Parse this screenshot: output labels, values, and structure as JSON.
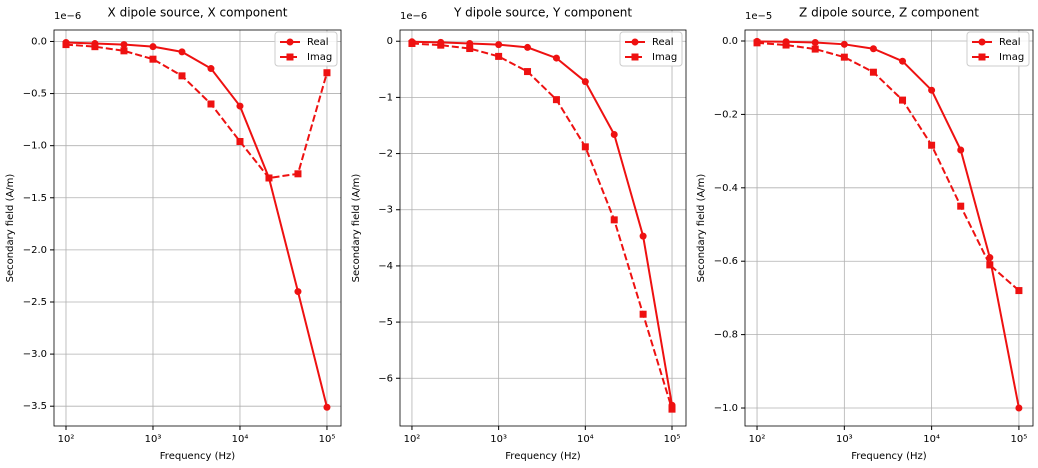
{
  "chart_data": [
    {
      "type": "line",
      "title": "X dipole source, X component",
      "offset_label": "1e−6",
      "xlabel": "Frequency (Hz)",
      "ylabel": "Secondary field (A/m)",
      "xscale": "log",
      "grid": true,
      "legend": "upper right",
      "x": [
        100,
        215,
        464,
        1000,
        2154,
        4642,
        10000,
        21544,
        46416,
        100000
      ],
      "series": [
        {
          "name": "Real",
          "color": "#ee1111",
          "marker": "circle",
          "linestyle": "solid",
          "values": [
            -0.01,
            -0.02,
            -0.03,
            -0.05,
            -0.1,
            -0.26,
            -0.62,
            -1.31,
            -2.4,
            -3.51
          ]
        },
        {
          "name": "Imag",
          "color": "#ee1111",
          "marker": "square",
          "linestyle": "dashed",
          "values": [
            -0.03,
            -0.05,
            -0.09,
            -0.17,
            -0.33,
            -0.6,
            -0.96,
            -1.31,
            -1.27,
            -0.3
          ]
        }
      ],
      "xlim": [
        72.8,
        145000
      ],
      "ylim": [
        -3.69,
        0.11
      ],
      "xticks": [
        {
          "value": 100,
          "label": "10²"
        },
        {
          "value": 1000,
          "label": "10³"
        },
        {
          "value": 10000,
          "label": "10⁴"
        },
        {
          "value": 100000,
          "label": "10⁵"
        }
      ],
      "yticks": [
        {
          "value": 0,
          "label": "0.0"
        },
        {
          "value": -0.5,
          "label": "−0.5"
        },
        {
          "value": -1,
          "label": "−1.0"
        },
        {
          "value": -1.5,
          "label": "−1.5"
        },
        {
          "value": -2,
          "label": "−2.0"
        },
        {
          "value": -2.5,
          "label": "−2.5"
        },
        {
          "value": -3,
          "label": "−3.0"
        },
        {
          "value": -3.5,
          "label": "−3.5"
        }
      ]
    },
    {
      "type": "line",
      "title": "Y dipole source, Y component",
      "offset_label": "1e−6",
      "xlabel": "Frequency (Hz)",
      "ylabel": "Secondary field (A/m)",
      "xscale": "log",
      "grid": true,
      "legend": "upper right",
      "x": [
        100,
        215,
        464,
        1000,
        2154,
        4642,
        10000,
        21544,
        46416,
        100000
      ],
      "series": [
        {
          "name": "Real",
          "color": "#ee1111",
          "marker": "circle",
          "linestyle": "solid",
          "values": [
            -0.01,
            -0.02,
            -0.04,
            -0.06,
            -0.11,
            -0.3,
            -0.72,
            -1.66,
            -3.47,
            -6.48
          ]
        },
        {
          "name": "Imag",
          "color": "#ee1111",
          "marker": "square",
          "linestyle": "dashed",
          "values": [
            -0.04,
            -0.07,
            -0.13,
            -0.27,
            -0.54,
            -1.04,
            -1.88,
            -3.18,
            -4.86,
            -6.55
          ]
        }
      ],
      "xlim": [
        72.8,
        145000
      ],
      "ylim": [
        -6.85,
        0.2
      ],
      "xticks": [
        {
          "value": 100,
          "label": "10²"
        },
        {
          "value": 1000,
          "label": "10³"
        },
        {
          "value": 10000,
          "label": "10⁴"
        },
        {
          "value": 100000,
          "label": "10⁵"
        }
      ],
      "yticks": [
        0,
        {
          "value": -1,
          "label": "−1"
        },
        {
          "value": -2,
          "label": "−2"
        },
        {
          "value": -3,
          "label": "−3"
        },
        {
          "value": -4,
          "label": "−4"
        },
        {
          "value": -5,
          "label": "−5"
        },
        {
          "value": -6,
          "label": "−6"
        }
      ]
    },
    {
      "type": "line",
      "title": "Z dipole source, Z component",
      "offset_label": "1e−5",
      "xlabel": "Frequency (Hz)",
      "ylabel": "Secondary field (A/m)",
      "xscale": "log",
      "grid": true,
      "legend": "upper right",
      "x": [
        100,
        215,
        464,
        1000,
        2154,
        4642,
        10000,
        21544,
        46416,
        100000
      ],
      "series": [
        {
          "name": "Real",
          "color": "#ee1111",
          "marker": "circle",
          "linestyle": "solid",
          "values": [
            -0.001,
            -0.002,
            -0.004,
            -0.009,
            -0.021,
            -0.055,
            -0.134,
            -0.297,
            -0.59,
            -1.0
          ]
        },
        {
          "name": "Imag",
          "color": "#ee1111",
          "marker": "square",
          "linestyle": "dashed",
          "values": [
            -0.005,
            -0.011,
            -0.022,
            -0.044,
            -0.085,
            -0.161,
            -0.284,
            -0.45,
            -0.61,
            -0.68
          ]
        }
      ],
      "xlim": [
        72.8,
        145000
      ],
      "ylim": [
        -1.049,
        0.03
      ],
      "xticks": [
        {
          "value": 100,
          "label": "10²"
        },
        {
          "value": 1000,
          "label": "10³"
        },
        {
          "value": 10000,
          "label": "10⁴"
        },
        {
          "value": 100000,
          "label": "10⁵"
        }
      ],
      "yticks": [
        {
          "value": 0,
          "label": "0.0"
        },
        {
          "value": -0.2,
          "label": "−0.2"
        },
        {
          "value": -0.4,
          "label": "−0.4"
        },
        {
          "value": -0.6,
          "label": "−0.6"
        },
        {
          "value": -0.8,
          "label": "−0.8"
        },
        {
          "value": -1,
          "label": "−1.0"
        }
      ]
    }
  ]
}
